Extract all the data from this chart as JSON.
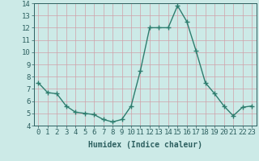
{
  "x": [
    0,
    1,
    2,
    3,
    4,
    5,
    6,
    7,
    8,
    9,
    10,
    11,
    12,
    13,
    14,
    15,
    16,
    17,
    18,
    19,
    20,
    21,
    22,
    23
  ],
  "y": [
    7.5,
    6.7,
    6.6,
    5.6,
    5.1,
    5.0,
    4.9,
    4.5,
    4.3,
    4.5,
    5.6,
    8.5,
    12.0,
    12.0,
    12.0,
    13.8,
    12.5,
    10.1,
    7.5,
    6.6,
    5.6,
    4.8,
    5.5,
    5.6
  ],
  "line_color": "#2d7d6e",
  "marker": "+",
  "marker_size": 4,
  "bg_color": "#cceae7",
  "grid_major_color": "#b0d0cc",
  "grid_minor_color": "#c5e2de",
  "xlabel": "Humidex (Indice chaleur)",
  "ylim": [
    4,
    14
  ],
  "xlim": [
    -0.5,
    23.5
  ],
  "yticks": [
    4,
    5,
    6,
    7,
    8,
    9,
    10,
    11,
    12,
    13,
    14
  ],
  "xticks": [
    0,
    1,
    2,
    3,
    4,
    5,
    6,
    7,
    8,
    9,
    10,
    11,
    12,
    13,
    14,
    15,
    16,
    17,
    18,
    19,
    20,
    21,
    22,
    23
  ],
  "xlabel_fontsize": 7,
  "tick_fontsize": 6.5,
  "line_width": 1.0,
  "text_color": "#2d6060"
}
